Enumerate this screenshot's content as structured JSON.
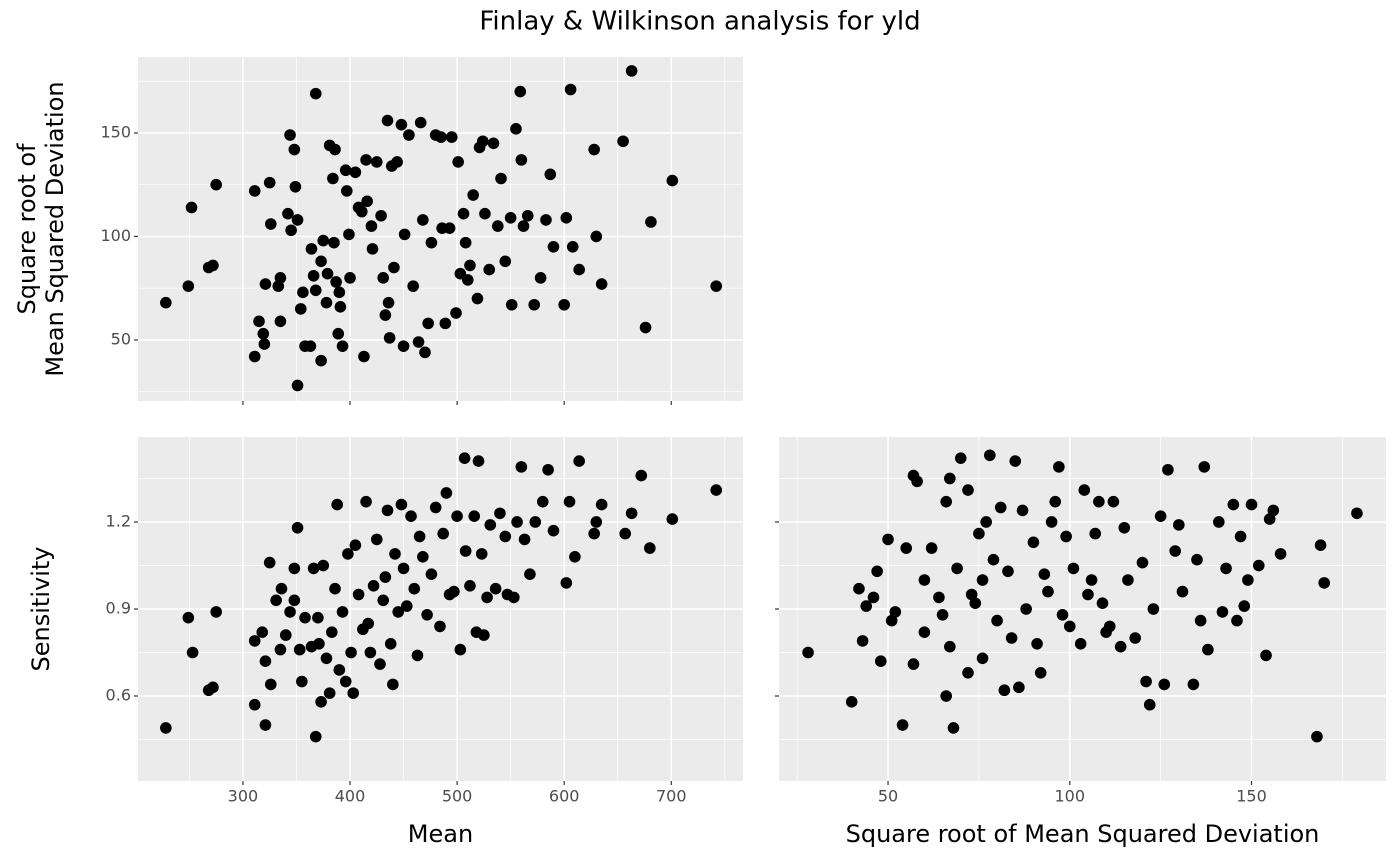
{
  "title": "Finlay & Wilkinson analysis for yld",
  "chart_data": [
    {
      "type": "scatter",
      "color": "#000000",
      "y_label": [
        "Square root of",
        "Mean Squared Deviation"
      ],
      "xlim": [
        202,
        767
      ],
      "ylim": [
        20.5,
        186.7
      ],
      "xticks": [
        300,
        400,
        500,
        600,
        700
      ],
      "yticks": [
        50,
        100,
        150
      ],
      "grid": true,
      "x": [
        228,
        249,
        252,
        268,
        272,
        275,
        311,
        311,
        315,
        319,
        320,
        321,
        325,
        326,
        333,
        335,
        335,
        342,
        344,
        345,
        348,
        349,
        351,
        351,
        354,
        356,
        358,
        363,
        364,
        366,
        368,
        368,
        373,
        373,
        375,
        378,
        379,
        381,
        384,
        385,
        386,
        387,
        389,
        390,
        391,
        393,
        396,
        397,
        399,
        400,
        405,
        408,
        411,
        413,
        415,
        416,
        420,
        421,
        425,
        429,
        431,
        433,
        435,
        436,
        437,
        439,
        441,
        444,
        448,
        450,
        451,
        455,
        459,
        464,
        466,
        468,
        470,
        473,
        476,
        480,
        485,
        486,
        489,
        493,
        495,
        499,
        501,
        503,
        506,
        508,
        510,
        512,
        515,
        519,
        521,
        524,
        526,
        530,
        534,
        538,
        541,
        545,
        550,
        551,
        555,
        559,
        560,
        562,
        566,
        572,
        578,
        583,
        587,
        590,
        600,
        602,
        606,
        608,
        614,
        628,
        630,
        635,
        655,
        663,
        676,
        681,
        701,
        742
      ],
      "values": [
        68,
        76,
        114,
        85,
        86,
        125,
        42,
        122,
        59,
        53,
        48,
        77,
        126,
        106,
        76,
        80,
        59,
        111,
        149,
        103,
        142,
        124,
        108,
        28,
        65,
        73,
        47,
        47,
        94,
        81,
        169,
        74,
        40,
        88,
        98,
        68,
        82,
        144,
        128,
        97,
        142,
        78,
        53,
        73,
        66,
        47,
        132,
        122,
        101,
        80,
        131,
        114,
        112,
        42,
        137,
        117,
        105,
        94,
        136,
        110,
        80,
        62,
        156,
        68,
        51,
        134,
        85,
        136,
        154,
        47,
        101,
        149,
        76,
        49,
        155,
        108,
        44,
        58,
        97,
        149,
        148,
        104,
        58,
        104,
        148,
        63,
        136,
        82,
        111,
        97,
        79,
        86,
        120,
        70,
        143,
        146,
        111,
        84,
        145,
        105,
        128,
        88,
        109,
        67,
        152,
        170,
        137,
        105,
        110,
        67,
        80,
        108,
        130,
        95,
        67,
        109,
        171,
        95,
        84,
        142,
        100,
        77,
        146,
        180,
        56,
        107,
        127,
        76
      ]
    },
    {
      "type": "scatter",
      "color": "#000000",
      "x_label": "Mean",
      "y_label": "Sensitivity",
      "xlim": [
        202,
        767
      ],
      "ylim": [
        0.307,
        1.493
      ],
      "xticks": [
        300,
        400,
        500,
        600,
        700
      ],
      "yticks": [
        0.6,
        0.9,
        1.2
      ],
      "grid": true,
      "x": [
        228,
        249,
        253,
        268,
        272,
        275,
        311,
        311,
        318,
        321,
        321,
        325,
        326,
        331,
        335,
        336,
        340,
        344,
        348,
        348,
        351,
        353,
        355,
        358,
        364,
        366,
        368,
        370,
        371,
        373,
        375,
        378,
        381,
        383,
        386,
        388,
        390,
        393,
        396,
        398,
        401,
        403,
        405,
        408,
        412,
        415,
        417,
        419,
        422,
        425,
        428,
        431,
        433,
        435,
        438,
        440,
        442,
        445,
        448,
        450,
        453,
        457,
        460,
        463,
        465,
        468,
        472,
        476,
        480,
        484,
        487,
        490,
        493,
        497,
        500,
        503,
        507,
        508,
        512,
        516,
        518,
        520,
        523,
        525,
        528,
        531,
        536,
        540,
        545,
        547,
        553,
        556,
        560,
        563,
        568,
        573,
        580,
        585,
        590,
        602,
        605,
        610,
        614,
        628,
        630,
        635,
        657,
        663,
        672,
        680,
        701,
        742
      ],
      "values": [
        0.49,
        0.87,
        0.75,
        0.62,
        0.63,
        0.89,
        0.79,
        0.57,
        0.82,
        0.5,
        0.72,
        1.06,
        0.64,
        0.93,
        0.76,
        0.97,
        0.81,
        0.89,
        1.04,
        0.93,
        1.18,
        0.76,
        0.65,
        0.87,
        0.77,
        1.04,
        0.46,
        0.87,
        0.78,
        0.58,
        1.05,
        0.73,
        0.61,
        0.82,
        0.97,
        1.26,
        0.69,
        0.89,
        0.65,
        1.09,
        0.75,
        0.61,
        1.12,
        0.95,
        0.83,
        1.27,
        0.85,
        0.75,
        0.98,
        1.14,
        0.71,
        0.93,
        1.01,
        1.24,
        0.78,
        0.64,
        1.09,
        0.89,
        1.26,
        1.04,
        0.91,
        1.22,
        0.97,
        0.74,
        1.15,
        1.08,
        0.88,
        1.02,
        1.25,
        0.84,
        1.16,
        1.3,
        0.95,
        0.96,
        1.22,
        0.76,
        1.42,
        1.1,
        0.98,
        1.22,
        0.82,
        1.41,
        1.09,
        0.81,
        0.94,
        1.19,
        0.97,
        1.23,
        1.15,
        0.95,
        0.94,
        1.2,
        1.39,
        1.14,
        1.02,
        1.2,
        1.27,
        1.38,
        1.17,
        0.99,
        1.27,
        1.08,
        1.41,
        1.16,
        1.2,
        1.26,
        1.16,
        1.23,
        1.36,
        1.11,
        1.21,
        1.31
      ]
    },
    {
      "type": "scatter",
      "color": "#000000",
      "x_label": "Square root of Mean Squared Deviation",
      "xlim": [
        20,
        187
      ],
      "ylim": [
        0.307,
        1.493
      ],
      "xticks": [
        50,
        100,
        150
      ],
      "yticks": [
        0.6,
        0.9,
        1.2
      ],
      "grid": true,
      "x": [
        28,
        40,
        42,
        43,
        44,
        46,
        47,
        48,
        50,
        51,
        52,
        54,
        55,
        57,
        57,
        58,
        60,
        60,
        62,
        64,
        65,
        66,
        66,
        67,
        67,
        68,
        69,
        70,
        72,
        72,
        73,
        74,
        75,
        76,
        76,
        77,
        78,
        79,
        80,
        81,
        82,
        83,
        84,
        85,
        86,
        87,
        88,
        90,
        91,
        92,
        93,
        94,
        95,
        96,
        97,
        98,
        99,
        100,
        101,
        103,
        104,
        105,
        106,
        107,
        108,
        109,
        110,
        111,
        112,
        114,
        115,
        116,
        118,
        120,
        121,
        122,
        123,
        125,
        126,
        127,
        129,
        130,
        131,
        134,
        135,
        136,
        137,
        138,
        141,
        142,
        143,
        145,
        146,
        147,
        148,
        149,
        150,
        152,
        154,
        155,
        156,
        158,
        168,
        169,
        170,
        179
      ],
      "values": [
        0.75,
        0.58,
        0.97,
        0.79,
        0.91,
        0.94,
        1.03,
        0.72,
        1.14,
        0.86,
        0.89,
        0.5,
        1.11,
        0.71,
        1.36,
        1.34,
        0.82,
        1.0,
        1.11,
        0.94,
        0.88,
        0.6,
        1.27,
        0.77,
        1.35,
        0.49,
        1.04,
        1.42,
        0.68,
        1.31,
        0.95,
        0.92,
        1.16,
        0.73,
        1.0,
        1.2,
        1.43,
        1.07,
        0.86,
        1.25,
        0.62,
        1.03,
        0.8,
        1.41,
        0.63,
        1.24,
        0.9,
        1.13,
        0.78,
        0.68,
        1.02,
        0.96,
        1.2,
        1.27,
        1.39,
        0.88,
        1.15,
        0.84,
        1.04,
        0.78,
        1.31,
        0.95,
        1.0,
        1.16,
        1.27,
        0.92,
        0.82,
        0.84,
        1.27,
        0.77,
        1.18,
        1.0,
        0.8,
        1.06,
        0.65,
        0.57,
        0.9,
        1.22,
        0.64,
        1.38,
        1.1,
        1.19,
        0.96,
        0.64,
        1.07,
        0.86,
        1.39,
        0.76,
        1.2,
        0.89,
        1.04,
        1.26,
        0.86,
        1.15,
        0.91,
        1.0,
        1.26,
        1.05,
        0.74,
        1.21,
        1.24,
        1.09,
        0.46,
        1.12,
        0.99,
        1.23
      ]
    }
  ]
}
